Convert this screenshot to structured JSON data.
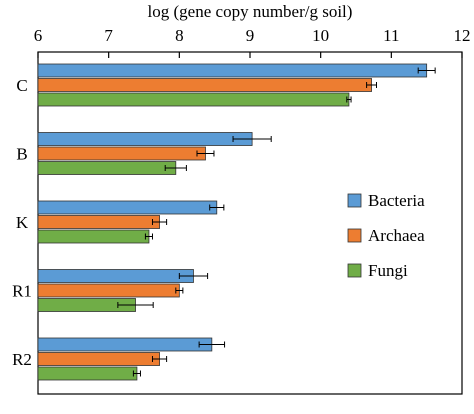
{
  "chart_data": {
    "type": "bar",
    "orientation": "horizontal",
    "title": "",
    "xlabel": "log (gene copy number/g soil)",
    "ylabel": "",
    "xlim": [
      6,
      12
    ],
    "x_ticks": [
      6,
      7,
      8,
      9,
      10,
      11,
      12
    ],
    "x_axis_position": "top",
    "grid": false,
    "legend_position": "center-right",
    "categories": [
      "C",
      "B",
      "K",
      "R1",
      "R2"
    ],
    "series": [
      {
        "name": "Bacteria",
        "color": "#5B9BD5",
        "values": [
          11.5,
          9.03,
          8.53,
          8.2,
          8.46
        ],
        "errors": [
          0.12,
          0.27,
          0.1,
          0.2,
          0.18
        ]
      },
      {
        "name": "Archaea",
        "color": "#ED7D31",
        "values": [
          10.72,
          8.37,
          7.72,
          8.0,
          7.72
        ],
        "errors": [
          0.07,
          0.12,
          0.1,
          0.05,
          0.1
        ]
      },
      {
        "name": "Fungi",
        "color": "#70AD47",
        "values": [
          10.4,
          7.95,
          7.57,
          7.38,
          7.4
        ],
        "errors": [
          0.03,
          0.15,
          0.05,
          0.25,
          0.05
        ]
      }
    ]
  }
}
